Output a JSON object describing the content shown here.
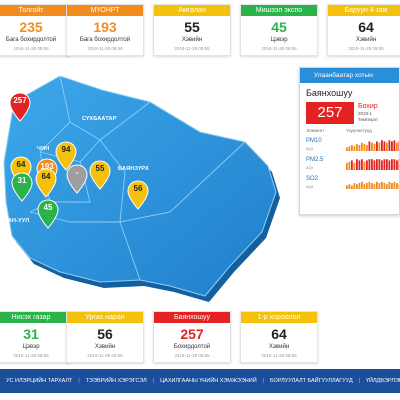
{
  "top_cards": [
    {
      "name": "Толгойт",
      "value": "235",
      "status": "Бага бохирдолтой",
      "time": "2019-11-28 09:55",
      "head_color": "#f28c1e",
      "value_color": "#f28c1e"
    },
    {
      "name": "МҮОНРТ",
      "value": "193",
      "status": "Бага бохирдолтой",
      "time": "2019-11-28 09:55",
      "head_color": "#f28c1e",
      "value_color": "#f28c1e"
    },
    {
      "name": "Амгалан",
      "value": "55",
      "status": "Хэвийн",
      "time": "2019-11-28 09:55",
      "head_color": "#f4c20d",
      "value_color": "#222222"
    },
    {
      "name": "Мишээл экспо",
      "value": "45",
      "status": "Цэвэр",
      "time": "2019-11-28 09:55",
      "head_color": "#2bb34a",
      "value_color": "#2bb34a"
    },
    {
      "name": "Баруун 4 зам",
      "value": "64",
      "status": "Хэвийн",
      "time": "2019-11-28 09:55",
      "head_color": "#f4c20d",
      "value_color": "#222222"
    }
  ],
  "bottom_cards": [
    {
      "name": "Нисэх газар",
      "value": "31",
      "status": "Цэвэр",
      "time": "2019-11-28 09:55",
      "head_color": "#2bb34a",
      "value_color": "#2bb34a"
    },
    {
      "name": "Ургах наран",
      "value": "56",
      "status": "Хэвийн",
      "time": "2019-11-28 09:55",
      "head_color": "#f4c20d",
      "value_color": "#222222"
    },
    {
      "name": "Баянхошуу",
      "value": "257",
      "status": "Бохирдолтой",
      "time": "2019-11-28 09:55",
      "head_color": "#e32222",
      "value_color": "#e32222"
    },
    {
      "name": "1-р хороолол",
      "value": "64",
      "status": "Хэвийн",
      "time": "2019-11-28 09:55",
      "head_color": "#f4c20d",
      "value_color": "#222222"
    }
  ],
  "map": {
    "districts": [
      "СҮХБААТАР",
      "ЧИН",
      "БАЯНЗҮРХ",
      "ХАН-УУЛ"
    ],
    "markers": [
      {
        "value": "257",
        "color": "#e32222"
      },
      {
        "value": "94",
        "color": "#f4c20d"
      },
      {
        "value": "64",
        "color": "#f4c20d"
      },
      {
        "value": "193",
        "color": "#f28c1e"
      },
      {
        "value": "-",
        "color": "#9e9e9e"
      },
      {
        "value": "55",
        "color": "#f4c20d"
      },
      {
        "value": "31",
        "color": "#2bb34a"
      },
      {
        "value": "64",
        "color": "#f4c20d"
      },
      {
        "value": "56",
        "color": "#f4c20d"
      },
      {
        "value": "45",
        "color": "#2bb34a"
      }
    ]
  },
  "panel": {
    "title": "Улаанбаатар хотын",
    "district": "Баянхошуу",
    "aqi": "257",
    "status": "Бохир",
    "date": "2019-1",
    "temp": "Температ",
    "col_element": "Элемент",
    "col_hours": "Үзүүлэлтүүд",
    "pollutants": [
      {
        "name": "PM10",
        "unit": "AQI",
        "bars": [
          3,
          4,
          5,
          4,
          6,
          5,
          7,
          6,
          5,
          8,
          7,
          6,
          8,
          7,
          9,
          8,
          7,
          9,
          8,
          9,
          7,
          8
        ]
      },
      {
        "name": "PM2.5",
        "unit": "AQI",
        "bars": [
          6,
          7,
          8,
          6,
          9,
          8,
          9,
          7,
          8,
          9,
          9,
          8,
          9,
          9,
          8,
          9,
          9,
          8,
          9,
          9,
          8,
          9
        ]
      },
      {
        "name": "SO2",
        "unit": "AQI",
        "bars": [
          3,
          4,
          3,
          5,
          4,
          5,
          6,
          4,
          5,
          6,
          5,
          4,
          6,
          5,
          6,
          5,
          4,
          6,
          5,
          6,
          5,
          4
        ]
      }
    ]
  },
  "nav": [
    "УС ИЛЭРЦИЙН ТАРХАЛТ",
    "ТЭЭВРИЙН ХЭРЭГСЭЛ",
    "ЦАХИЛГААНЫ ҮНИЙН ХЭМЖЭЭНИЙ",
    "БОРЛУУЛАЛТ БАЙГУУЛЛАГУУД",
    "ҮЙЛДВЭРЛЭГЧ БАЙГУУЛЛАГ"
  ]
}
